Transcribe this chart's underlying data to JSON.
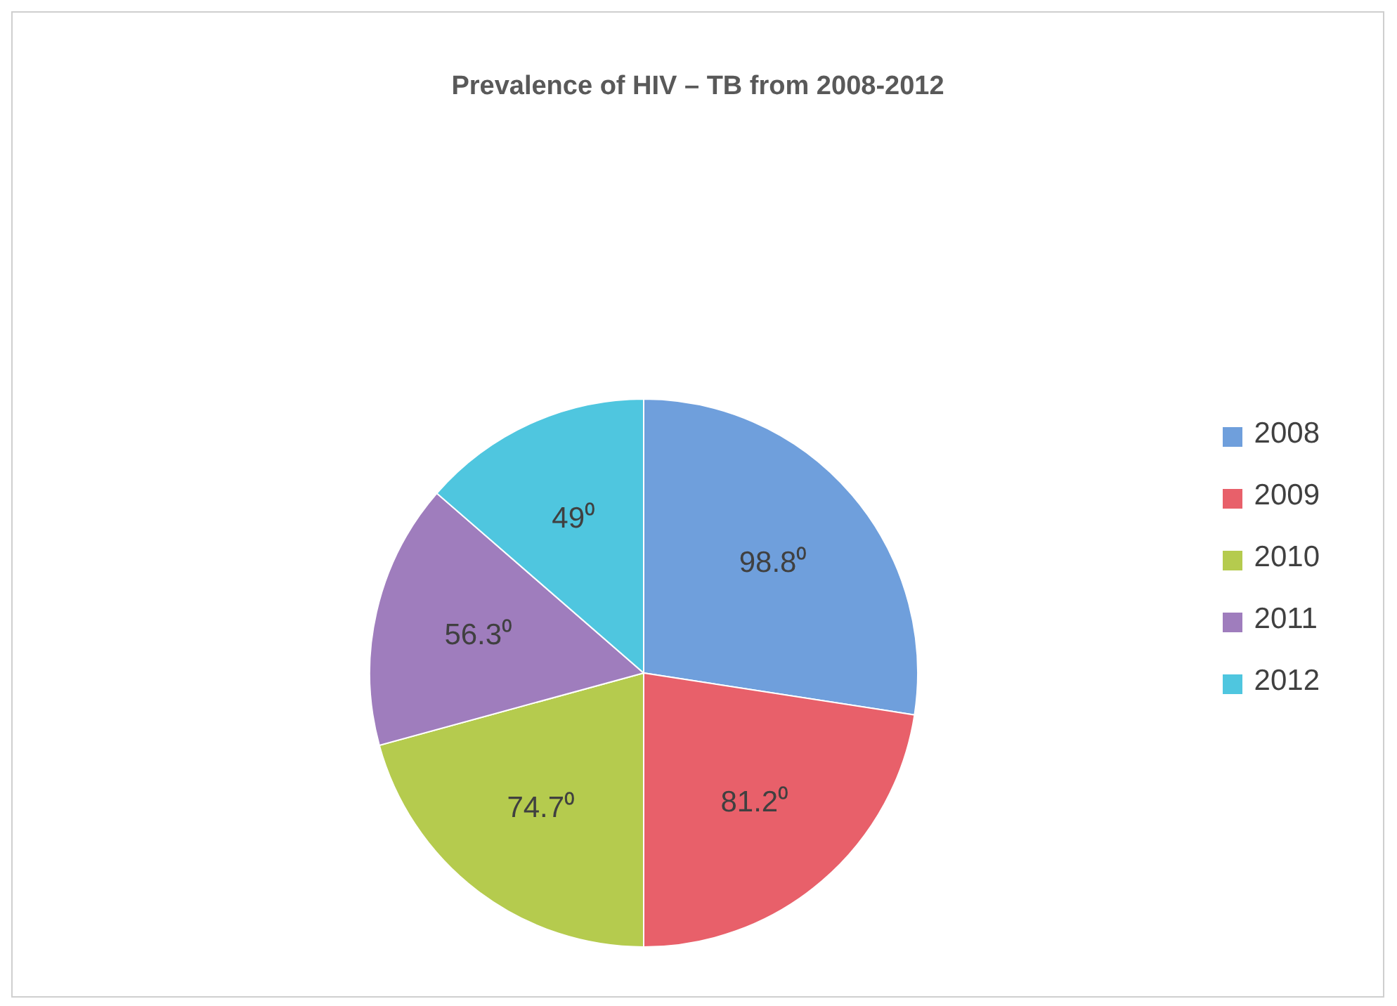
{
  "chart_data": {
    "type": "pie",
    "title": "Prevalence of HIV – TB from 2008-2012",
    "categories": [
      "2008",
      "2009",
      "2010",
      "2011",
      "2012"
    ],
    "values": [
      98.8,
      81.2,
      74.7,
      56.3,
      49
    ],
    "value_labels": [
      "98.8⁰",
      "81.2⁰",
      "74.7⁰",
      "56.3⁰",
      "49⁰"
    ],
    "colors": [
      "#6f9fdc",
      "#e8606a",
      "#b5cb4e",
      "#9f7dbd",
      "#4fc6df"
    ],
    "legend": "right"
  }
}
